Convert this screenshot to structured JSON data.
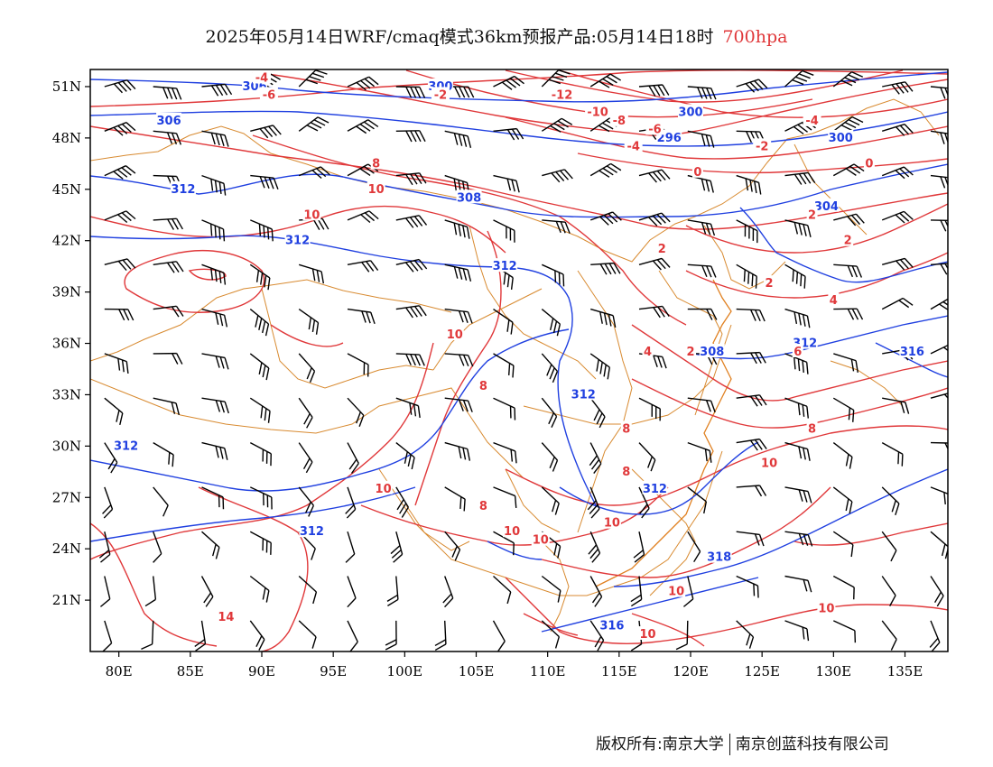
{
  "title": {
    "main": "2025年05月14日WRF/cmaq模式36km预报产品:05月14日18时",
    "level": "700hpa"
  },
  "axes": {
    "lat_labels": [
      "51N",
      "48N",
      "45N",
      "42N",
      "39N",
      "36N",
      "33N",
      "30N",
      "27N",
      "24N",
      "21N"
    ],
    "lat_values": [
      51,
      48,
      45,
      42,
      39,
      36,
      33,
      30,
      27,
      24,
      21
    ],
    "lon_labels": [
      "80E",
      "85E",
      "90E",
      "95E",
      "100E",
      "105E",
      "110E",
      "115E",
      "120E",
      "125E",
      "130E",
      "135E"
    ],
    "lon_values": [
      80,
      85,
      90,
      95,
      100,
      105,
      110,
      115,
      120,
      125,
      130,
      135
    ],
    "lon_range": [
      78,
      138
    ],
    "lat_range": [
      18,
      52
    ]
  },
  "colors": {
    "height_contour": "#2040e0",
    "temperature_contour": "#e0383a",
    "boundary": "#d88a30",
    "wind_barb": "#000000"
  },
  "height_labels": [
    {
      "text": "306",
      "lon": 89.5,
      "lat": 51.0
    },
    {
      "text": "300",
      "lon": 102.5,
      "lat": 51.0
    },
    {
      "text": "306",
      "lon": 83.5,
      "lat": 49.0
    },
    {
      "text": "312",
      "lon": 84.5,
      "lat": 45.0
    },
    {
      "text": "308",
      "lon": 104.5,
      "lat": 44.5
    },
    {
      "text": "312",
      "lon": 92.5,
      "lat": 42.0
    },
    {
      "text": "312",
      "lon": 107.0,
      "lat": 40.5
    },
    {
      "text": "300",
      "lon": 120.0,
      "lat": 49.5
    },
    {
      "text": "296",
      "lon": 118.5,
      "lat": 48.0
    },
    {
      "text": "300",
      "lon": 130.5,
      "lat": 48.0
    },
    {
      "text": "304",
      "lon": 129.5,
      "lat": 44.0
    },
    {
      "text": "312",
      "lon": 128.0,
      "lat": 36.0
    },
    {
      "text": "308",
      "lon": 121.5,
      "lat": 35.5
    },
    {
      "text": "316",
      "lon": 135.5,
      "lat": 35.5
    },
    {
      "text": "312",
      "lon": 112.5,
      "lat": 33.0
    },
    {
      "text": "312",
      "lon": 80.5,
      "lat": 30.0
    },
    {
      "text": "312",
      "lon": 117.5,
      "lat": 27.5
    },
    {
      "text": "312",
      "lon": 93.5,
      "lat": 25.0
    },
    {
      "text": "318",
      "lon": 122.0,
      "lat": 23.5
    },
    {
      "text": "316",
      "lon": 114.5,
      "lat": 19.5
    }
  ],
  "temp_labels": [
    {
      "text": "-4",
      "lon": 90.0,
      "lat": 51.5
    },
    {
      "text": "-6",
      "lon": 90.5,
      "lat": 50.5
    },
    {
      "text": "-2",
      "lon": 102.5,
      "lat": 50.5
    },
    {
      "text": "-12",
      "lon": 111.0,
      "lat": 50.5
    },
    {
      "text": "-10",
      "lon": 113.5,
      "lat": 49.5
    },
    {
      "text": "-8",
      "lon": 115.0,
      "lat": 49.0
    },
    {
      "text": "-6",
      "lon": 117.5,
      "lat": 48.5
    },
    {
      "text": "-4",
      "lon": 116.0,
      "lat": 47.5
    },
    {
      "text": "-4",
      "lon": 128.5,
      "lat": 49.0
    },
    {
      "text": "-2",
      "lon": 125.0,
      "lat": 47.5
    },
    {
      "text": "0",
      "lon": 120.5,
      "lat": 46.0
    },
    {
      "text": "0",
      "lon": 132.5,
      "lat": 46.5
    },
    {
      "text": "8",
      "lon": 98.0,
      "lat": 46.5
    },
    {
      "text": "10",
      "lon": 98.0,
      "lat": 45.0
    },
    {
      "text": "10",
      "lon": 93.5,
      "lat": 43.5
    },
    {
      "text": "2",
      "lon": 128.5,
      "lat": 43.5
    },
    {
      "text": "2",
      "lon": 131.0,
      "lat": 42.0
    },
    {
      "text": "2",
      "lon": 118.0,
      "lat": 41.5
    },
    {
      "text": "2",
      "lon": 125.5,
      "lat": 39.5
    },
    {
      "text": "4",
      "lon": 130.0,
      "lat": 38.5
    },
    {
      "text": "10",
      "lon": 103.5,
      "lat": 36.5
    },
    {
      "text": "2",
      "lon": 120.0,
      "lat": 35.5
    },
    {
      "text": "4",
      "lon": 117.0,
      "lat": 35.5
    },
    {
      "text": "6",
      "lon": 127.5,
      "lat": 35.5
    },
    {
      "text": "8",
      "lon": 105.5,
      "lat": 33.5
    },
    {
      "text": "8",
      "lon": 115.5,
      "lat": 31.0
    },
    {
      "text": "8",
      "lon": 128.5,
      "lat": 31.0
    },
    {
      "text": "10",
      "lon": 125.5,
      "lat": 29.0
    },
    {
      "text": "8",
      "lon": 115.5,
      "lat": 28.5
    },
    {
      "text": "10",
      "lon": 98.5,
      "lat": 27.5
    },
    {
      "text": "8",
      "lon": 105.5,
      "lat": 26.5
    },
    {
      "text": "10",
      "lon": 114.5,
      "lat": 25.5
    },
    {
      "text": "10",
      "lon": 107.5,
      "lat": 25.0
    },
    {
      "text": "10",
      "lon": 109.5,
      "lat": 24.5
    },
    {
      "text": "10",
      "lon": 119.0,
      "lat": 21.5
    },
    {
      "text": "10",
      "lon": 129.5,
      "lat": 20.5
    },
    {
      "text": "14",
      "lon": 87.5,
      "lat": 20.0
    },
    {
      "text": "10",
      "lon": 117.0,
      "lat": 19.0
    }
  ],
  "footer": {
    "left": "版权所有:南京大学",
    "right": "南京创蓝科技有限公司"
  }
}
